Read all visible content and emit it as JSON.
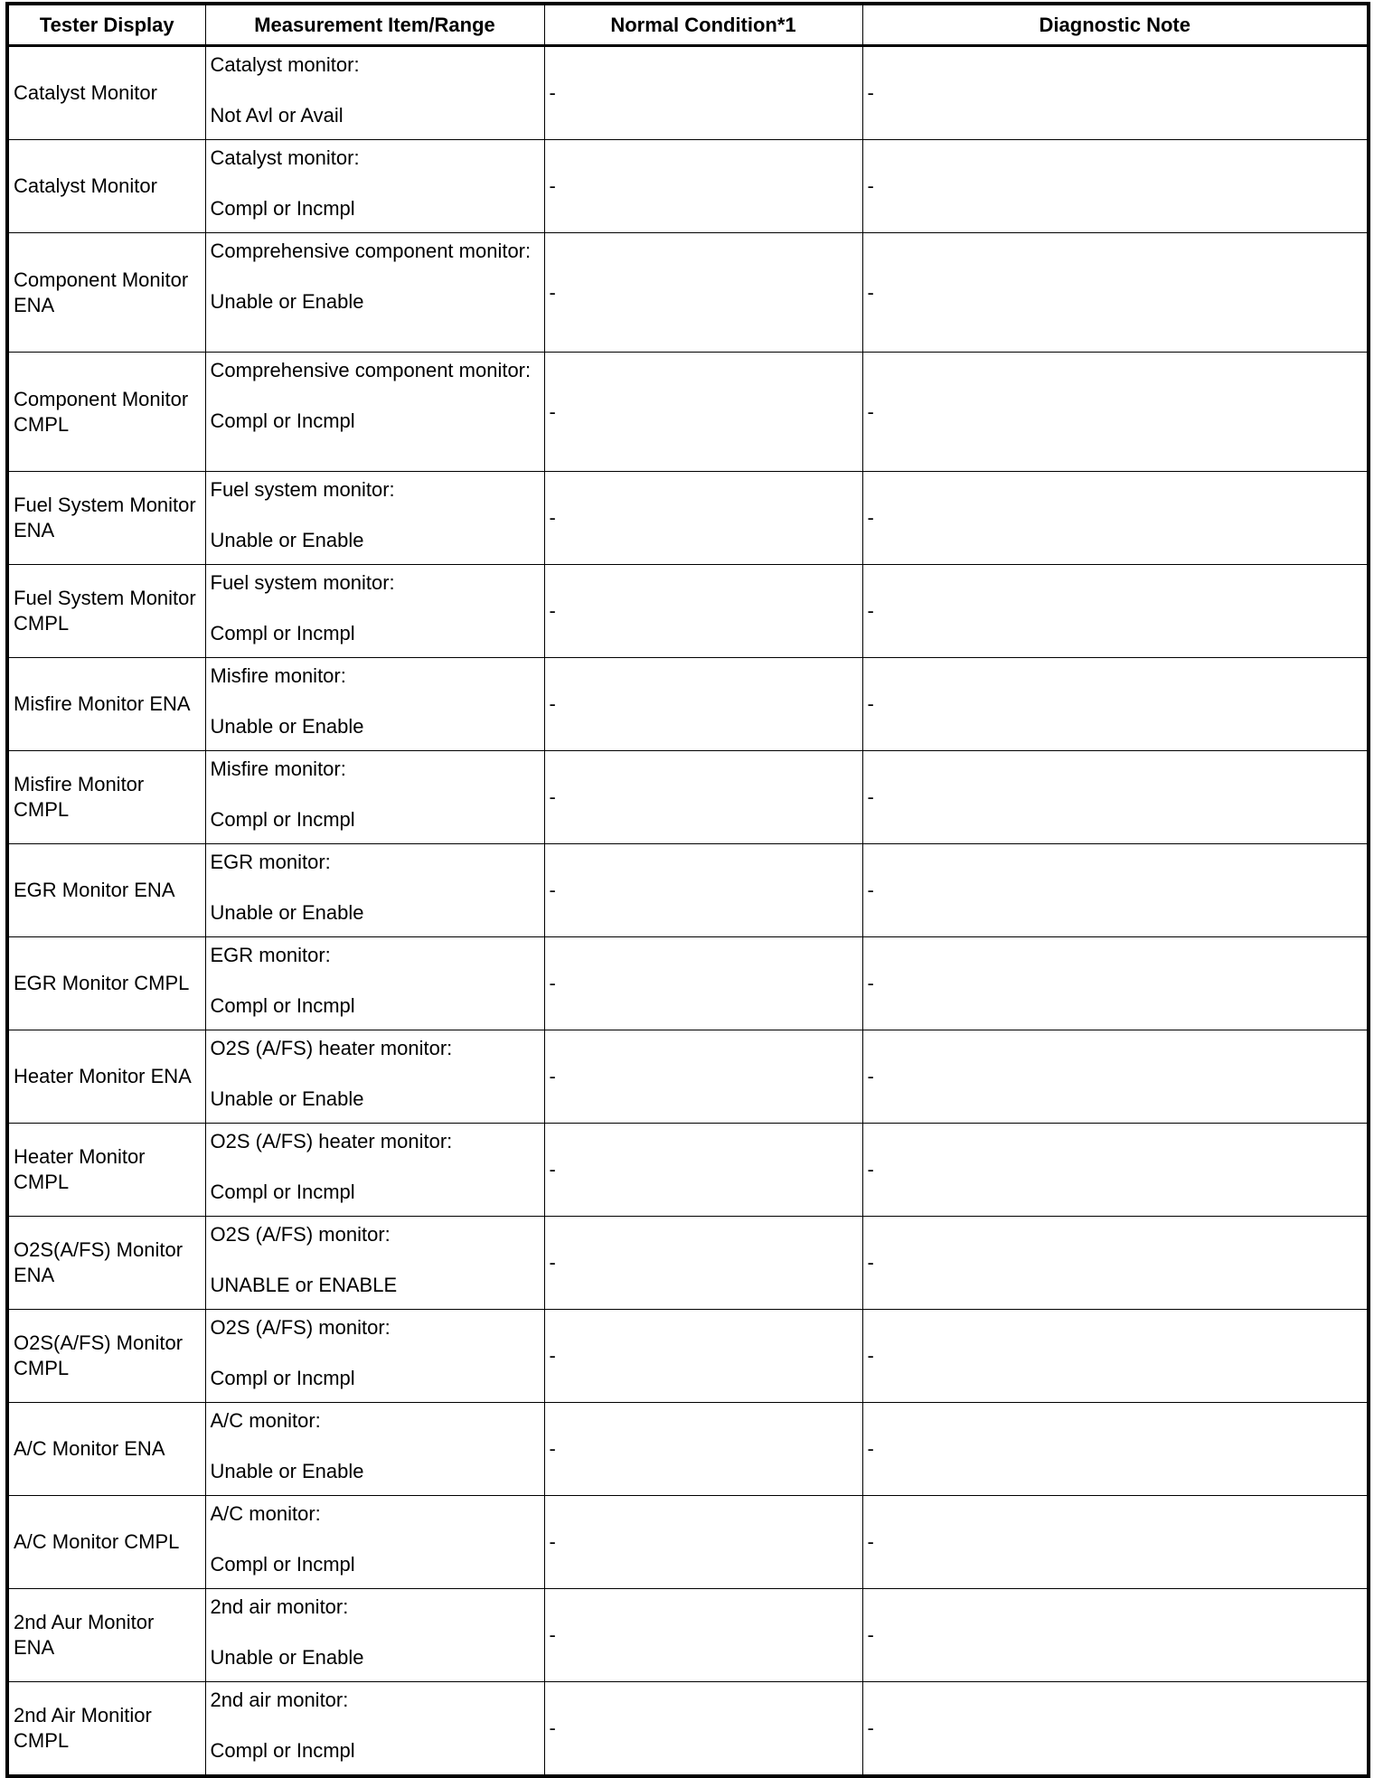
{
  "table": {
    "headers": [
      "Tester Display",
      "Measurement Item/Range",
      "Normal Condition*1",
      "Diagnostic Note"
    ],
    "rows": [
      {
        "display": "Catalyst Monitor",
        "item": "Catalyst monitor:",
        "range": "Not Avl or Avail",
        "normal": "-",
        "note": "-"
      },
      {
        "display": "Catalyst Monitor",
        "item": "Catalyst monitor:",
        "range": "Compl or Incmpl",
        "normal": "-",
        "note": "-"
      },
      {
        "display": "Component Monitor ENA",
        "item": "Comprehensive component monitor:",
        "range": "Unable or Enable",
        "normal": "-",
        "note": "-"
      },
      {
        "display": "Component Monitor CMPL",
        "item": "Comprehensive component monitor:",
        "range": "Compl or Incmpl",
        "normal": "-",
        "note": "-"
      },
      {
        "display": "Fuel System Monitor ENA",
        "item": "Fuel system monitor:",
        "range": "Unable or Enable",
        "normal": "-",
        "note": "-"
      },
      {
        "display": "Fuel System Monitor CMPL",
        "item": "Fuel system monitor:",
        "range": "Compl or Incmpl",
        "normal": "-",
        "note": "-"
      },
      {
        "display": "Misfire Monitor ENA",
        "item": "Misfire monitor:",
        "range": "Unable or Enable",
        "normal": "-",
        "note": "-"
      },
      {
        "display": "Misfire Monitor CMPL",
        "item": "Misfire monitor:",
        "range": "Compl or Incmpl",
        "normal": "-",
        "note": "-"
      },
      {
        "display": "EGR Monitor ENA",
        "item": "EGR monitor:",
        "range": "Unable or Enable",
        "normal": "-",
        "note": "-"
      },
      {
        "display": "EGR Monitor CMPL",
        "item": "EGR monitor:",
        "range": "Compl or Incmpl",
        "normal": "-",
        "note": "-"
      },
      {
        "display": "Heater Monitor ENA",
        "item": "O2S (A/FS) heater monitor:",
        "range": "Unable or Enable",
        "normal": "-",
        "note": "-"
      },
      {
        "display": "Heater Monitor CMPL",
        "item": "O2S (A/FS) heater monitor:",
        "range": "Compl or Incmpl",
        "normal": "-",
        "note": "-"
      },
      {
        "display": "O2S(A/FS) Monitor ENA",
        "item": "O2S (A/FS) monitor:",
        "range": "UNABLE or ENABLE",
        "normal": "-",
        "note": "-"
      },
      {
        "display": "O2S(A/FS) Monitor CMPL",
        "item": "O2S (A/FS) monitor:",
        "range": "Compl or Incmpl",
        "normal": "-",
        "note": "-"
      },
      {
        "display": "A/C Monitor ENA",
        "item": "A/C monitor:",
        "range": "Unable or Enable",
        "normal": "-",
        "note": "-"
      },
      {
        "display": "A/C Monitor CMPL",
        "item": "A/C monitor:",
        "range": "Compl or Incmpl",
        "normal": "-",
        "note": "-"
      },
      {
        "display": "2nd Aur Monitor ENA",
        "item": "2nd air monitor:",
        "range": "Unable or Enable",
        "normal": "-",
        "note": "-"
      },
      {
        "display": "2nd Air Monitior CMPL",
        "item": "2nd air monitor:",
        "range": "Compl or Incmpl",
        "normal": "-",
        "note": "-"
      }
    ]
  }
}
